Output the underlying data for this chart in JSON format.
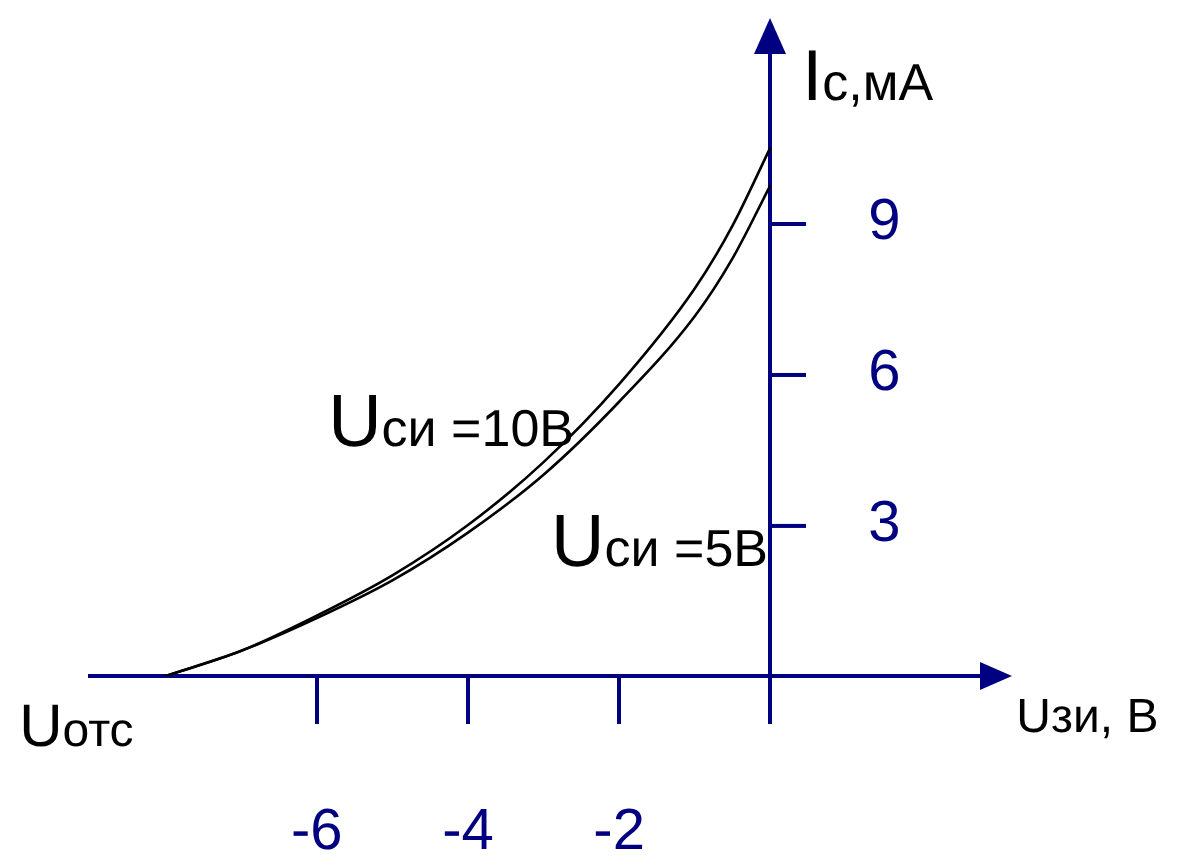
{
  "chart_data": {
    "type": "line",
    "xlabel": "Uзи, В",
    "ylabel": "Iс,мА",
    "x": [
      -8,
      -7,
      -6,
      -5,
      -4,
      -3,
      -2,
      -1,
      -0.5,
      0
    ],
    "series": [
      {
        "name": "Uси =10В",
        "color": "#000000",
        "values": [
          0,
          0.5,
          1.2,
          2.0,
          3.0,
          4.25,
          5.8,
          7.7,
          8.95,
          10.5
        ]
      },
      {
        "name": "Uси =5В",
        "color": "#000000",
        "values": [
          0,
          0.5,
          1.15,
          1.9,
          2.85,
          4.0,
          5.45,
          7.15,
          8.3,
          9.75
        ]
      }
    ],
    "xlim": [
      -9,
      2.8
    ],
    "ylim": [
      0,
      12.4
    ],
    "xticks": [
      -6,
      -4,
      -2,
      {
        "value": 0,
        "label": null
      }
    ],
    "yticks": [
      3,
      6,
      9
    ],
    "annotations": [
      {
        "text": "Uотс",
        "x": -8,
        "y": 0
      }
    ]
  }
}
